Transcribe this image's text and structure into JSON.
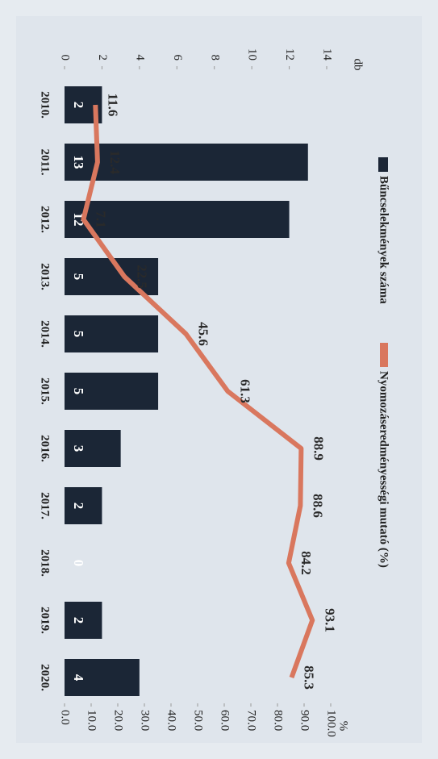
{
  "chart_data": {
    "type": "bar-line",
    "categories": [
      "2010.",
      "2011.",
      "2012.",
      "2013.",
      "2014.",
      "2015.",
      "2016.",
      "2017.",
      "2018.",
      "2019.",
      "2020."
    ],
    "series": [
      {
        "name": "Bűncselekmények száma",
        "color": "#1b2636",
        "values": [
          2,
          13,
          12,
          5,
          5,
          5,
          3,
          2,
          0,
          2,
          4
        ]
      },
      {
        "name": "Nyomozáseredményességi mutató (%)",
        "color": "#d9775e",
        "axis": "y2",
        "values": [
          11.6,
          12.4,
          7.1,
          22.5,
          45.6,
          61.3,
          88.9,
          88.6,
          84.2,
          93.1,
          85.3
        ]
      }
    ],
    "ylabel": "db",
    "y2label": "%",
    "ylim": [
      0,
      14
    ],
    "yticks": [
      0,
      2,
      4,
      6,
      8,
      10,
      12,
      14
    ],
    "y2lim": [
      0,
      100
    ],
    "y2ticks": [
      {
        "value": 0,
        "label": "0.0"
      },
      {
        "value": 10,
        "label": "10.0"
      },
      {
        "value": 20,
        "label": "20.0"
      },
      {
        "value": 30,
        "label": "30.0"
      },
      {
        "value": 40,
        "label": "40.0"
      },
      {
        "value": 50,
        "label": "50.0"
      },
      {
        "value": 60,
        "label": "60.0"
      },
      {
        "value": 70,
        "label": "70.0"
      },
      {
        "value": 80,
        "label": "80.0"
      },
      {
        "value": 90,
        "label": "90.0"
      },
      {
        "value": 100,
        "label": "100.0"
      }
    ]
  }
}
